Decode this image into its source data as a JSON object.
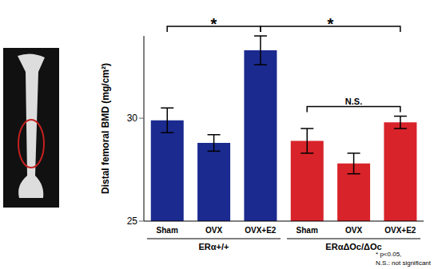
{
  "chart_data": {
    "type": "bar",
    "categories": [
      "Sham",
      "OVX",
      "OVX+E2",
      "Sham",
      "OVX",
      "OVX+E2"
    ],
    "values": [
      29.9,
      28.8,
      33.3,
      28.9,
      27.8,
      29.8
    ],
    "errors": [
      0.6,
      0.4,
      0.7,
      0.6,
      0.5,
      0.3
    ],
    "colors": [
      "#1b2a8f",
      "#1b2a8f",
      "#1b2a8f",
      "#d8232a",
      "#d8232a",
      "#d8232a"
    ],
    "groups": [
      {
        "label": "ERα+/+",
        "from": 0,
        "to": 2
      },
      {
        "label": "ERαΔOc/ΔOc",
        "from": 3,
        "to": 5
      }
    ],
    "y_label": "Distal femoral BMD (mg/cm²)",
    "ylim": [
      25,
      34
    ],
    "yticks": [
      25,
      30
    ],
    "annotations": [
      {
        "text": "*",
        "from": 0,
        "to": 2
      },
      {
        "text": "*",
        "from": 2,
        "to": 5
      },
      {
        "text": "N.S.",
        "from": 3,
        "to": 5
      }
    ],
    "footnotes": [
      "* p<0.05,",
      "N.S.: not significant"
    ]
  }
}
